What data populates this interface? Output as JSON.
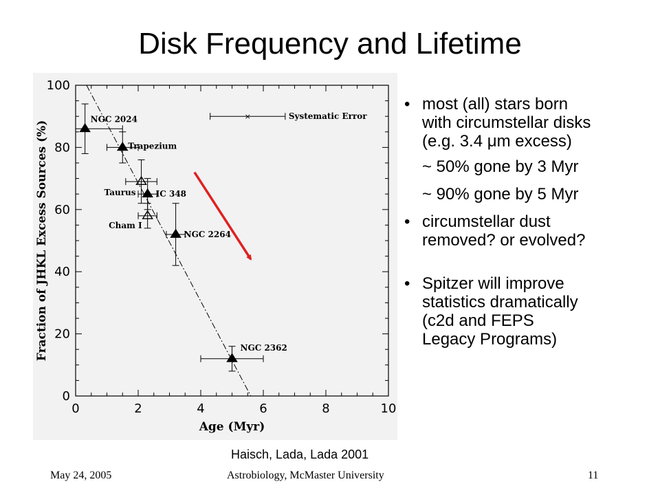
{
  "slide": {
    "title": "Disk Frequency and Lifetime",
    "citation": "Haisch, Lada, Lada 2001"
  },
  "bullets": {
    "b1_line1": "most (all) stars born",
    "b1_line2": "with circumstellar disks",
    "b1_line3_pre": "(e.g. 3.4 ",
    "b1_line3_mu": "μ",
    "b1_line3_post": "m excess)",
    "sub1": "~ 50% gone by 3 Myr",
    "sub2": "~ 90% gone by 5 Myr",
    "b2_line1": "circumstellar dust",
    "b2_line2": "removed? or evolved?",
    "b3_line1": "Spitzer will improve",
    "b3_line2": "statistics dramatically",
    "b3_line3": "(c2d and FEPS",
    "b3_line4": "Legacy Programs)",
    "marker": "•"
  },
  "footer": {
    "date": "May 24, 2005",
    "venue": "Astrobiology, McMaster University",
    "page": "11"
  },
  "colors": {
    "arrow": "#e02020",
    "axes": "#000000",
    "panel_background": "#f2f2f2"
  },
  "chart_data": {
    "type": "scatter",
    "xlabel": "Age (Myr)",
    "ylabel": "Fraction of JHKL Excess Sources (%)",
    "xlim": [
      0,
      10
    ],
    "ylim": [
      0,
      100
    ],
    "xticks": [
      0,
      2,
      4,
      6,
      8,
      10
    ],
    "yticks": [
      0,
      20,
      40,
      60,
      80,
      100
    ],
    "grid": false,
    "points": [
      {
        "label": "NGC 2024",
        "x": 0.3,
        "y": 86,
        "xerr": [
          0.3,
          1.2
        ],
        "yerr": [
          8,
          8
        ],
        "marker": "filled-triangle"
      },
      {
        "label": "Trapezium",
        "x": 1.5,
        "y": 80,
        "xerr": [
          0.5,
          0.5
        ],
        "yerr": [
          5,
          5
        ],
        "marker": "filled-triangle"
      },
      {
        "label": "Taurus",
        "x": 2.1,
        "y": 69,
        "xerr": [
          0.5,
          0.5
        ],
        "yerr": [
          7,
          7
        ],
        "marker": "open-triangle"
      },
      {
        "label": "IC 348",
        "x": 2.3,
        "y": 65,
        "xerr": [
          0.3,
          0.3
        ],
        "yerr": [
          5,
          5
        ],
        "marker": "filled-triangle"
      },
      {
        "label": "Cham I",
        "x": 2.3,
        "y": 58,
        "xerr": [
          0.3,
          0.3
        ],
        "yerr": [
          4,
          4
        ],
        "marker": "open-triangle"
      },
      {
        "label": "NGC 2264",
        "x": 3.2,
        "y": 52,
        "xerr": [
          0.3,
          0.3
        ],
        "yerr": [
          10,
          10
        ],
        "marker": "filled-triangle"
      },
      {
        "label": "NGC 2362",
        "x": 5.0,
        "y": 12,
        "xerr": [
          1.0,
          1.0
        ],
        "yerr": [
          4,
          4
        ],
        "marker": "filled-triangle"
      }
    ],
    "systematic_error": {
      "label": "Systematic Error",
      "x": 5.5,
      "y": 90,
      "xerr": [
        1.2,
        1.2
      ]
    },
    "fit_line": {
      "x1": 0.35,
      "y1": 100,
      "x2": 5.6,
      "y2": 0,
      "style": "dash-dot"
    },
    "arrow": {
      "x1": 3.8,
      "y1": 72,
      "x2": 5.6,
      "y2": 44
    }
  }
}
